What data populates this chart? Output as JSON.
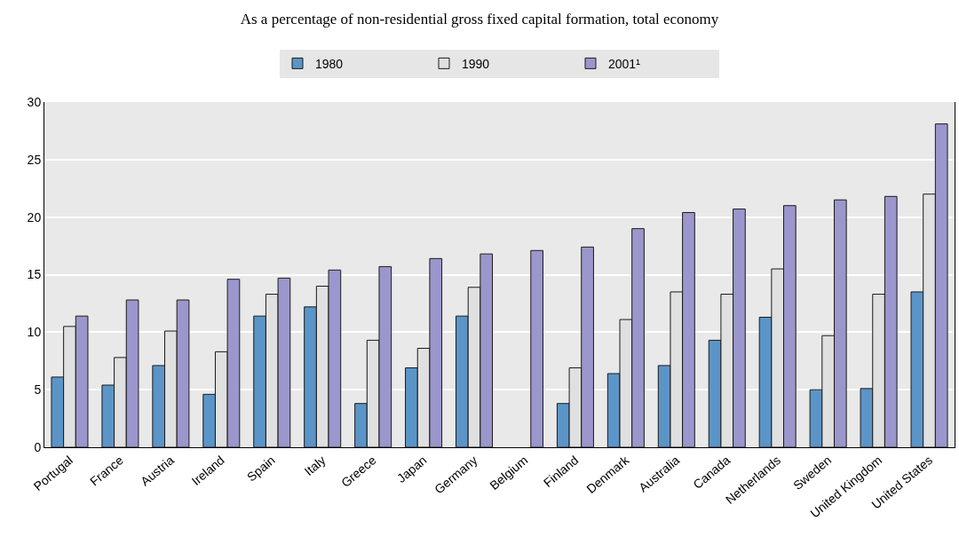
{
  "chart_data": {
    "type": "bar",
    "title": "As a percentage of non-residential gross fixed capital formation, total economy",
    "categories": [
      "Portugal",
      "France",
      "Austria",
      "Ireland",
      "Spain",
      "Italy",
      "Greece",
      "Japan",
      "Germany",
      "Belgium",
      "Finland",
      "Denmark",
      "Australia",
      "Canada",
      "Netherlands",
      "Sweden",
      "United Kingdom",
      "United States"
    ],
    "series": [
      {
        "name": "1980",
        "color": "#5b95c8",
        "values": [
          6.1,
          5.4,
          7.1,
          4.6,
          11.4,
          12.2,
          3.8,
          6.9,
          11.4,
          null,
          3.8,
          6.4,
          7.1,
          9.3,
          11.3,
          5.0,
          5.1,
          13.5
        ]
      },
      {
        "name": "1990",
        "color": "#e0e0e0",
        "values": [
          10.5,
          7.8,
          10.1,
          8.3,
          13.3,
          14.0,
          9.3,
          8.6,
          13.9,
          null,
          6.9,
          11.1,
          13.5,
          13.3,
          15.5,
          9.7,
          13.3,
          22.0
        ]
      },
      {
        "name": "2001¹",
        "color": "#9b97cc",
        "values": [
          11.4,
          12.8,
          12.8,
          14.6,
          14.7,
          15.4,
          15.7,
          16.4,
          16.8,
          17.1,
          17.4,
          19.0,
          20.4,
          20.7,
          21.0,
          21.5,
          21.8,
          28.1
        ]
      }
    ],
    "ylim": [
      0,
      30
    ],
    "yticks": [
      0,
      5,
      10,
      15,
      20,
      25,
      30
    ],
    "grid": "y",
    "legend": "top"
  }
}
